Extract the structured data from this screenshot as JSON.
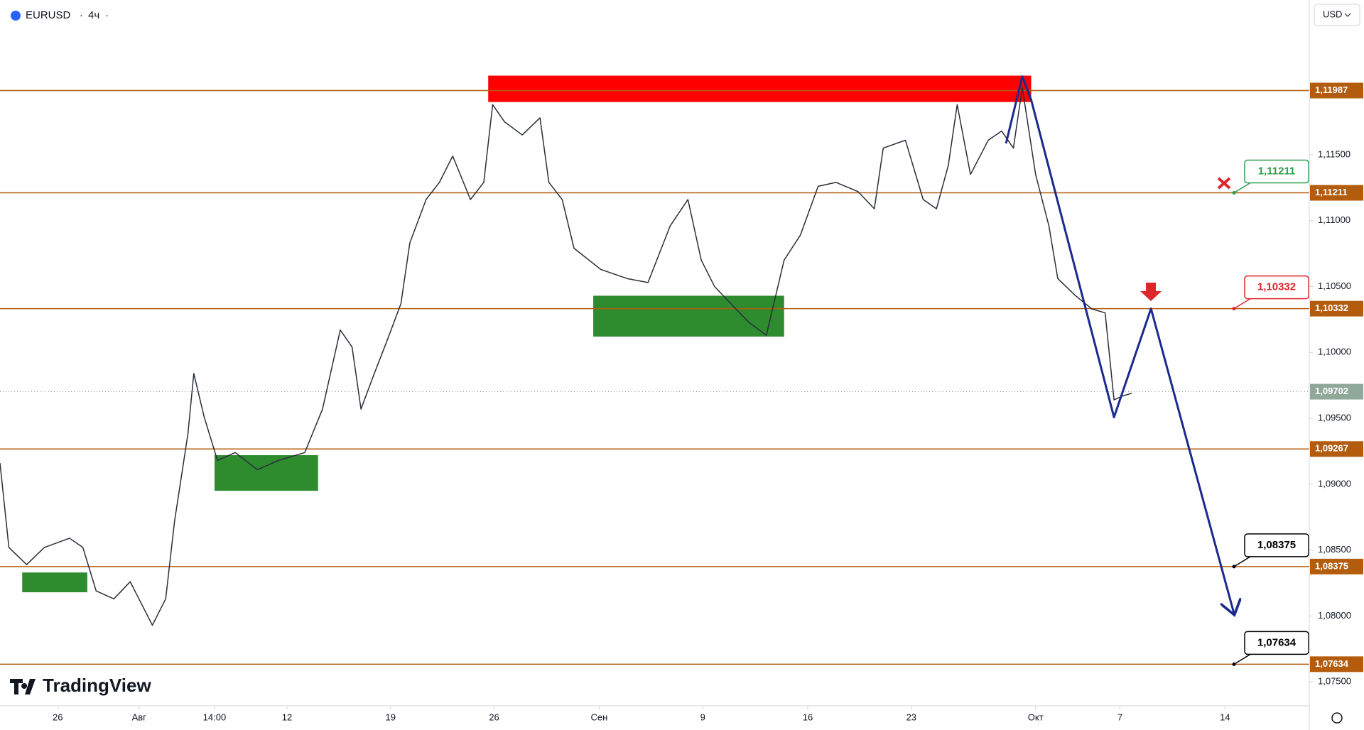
{
  "header": {
    "symbol": "EURUSD",
    "interval": "4ч",
    "currency": "USD",
    "brand": "TradingView"
  },
  "chart_data": {
    "type": "line",
    "xlim": [
      -3.9,
      84.6
    ],
    "ylim": [
      1.07318,
      1.12674
    ],
    "xticks": [
      {
        "value": 0,
        "label": "26"
      },
      {
        "value": 5.5,
        "label": "Авг"
      },
      {
        "value": 10.6,
        "label": "14:00"
      },
      {
        "value": 15.5,
        "label": "12"
      },
      {
        "value": 22.5,
        "label": "19"
      },
      {
        "value": 29.5,
        "label": "26"
      },
      {
        "value": 36.6,
        "label": "Сен"
      },
      {
        "value": 43.6,
        "label": "9"
      },
      {
        "value": 50.7,
        "label": "16"
      },
      {
        "value": 57.7,
        "label": "23"
      },
      {
        "value": 66.1,
        "label": "Окт"
      },
      {
        "value": 71.8,
        "label": "7"
      },
      {
        "value": 78.9,
        "label": "14"
      }
    ],
    "yticks": [
      {
        "value": 1.115,
        "label": "1,11500"
      },
      {
        "value": 1.11,
        "label": "1,11000"
      },
      {
        "value": 1.105,
        "label": "1,10500"
      },
      {
        "value": 1.1,
        "label": "1,10000"
      },
      {
        "value": 1.095,
        "label": "1,09500"
      },
      {
        "value": 1.09,
        "label": "1,09000"
      },
      {
        "value": 1.085,
        "label": "1,08500"
      },
      {
        "value": 1.08,
        "label": "1,08000"
      },
      {
        "value": 1.075,
        "label": "1,07500"
      }
    ],
    "series": [
      {
        "name": "EURUSD",
        "color": "#2a2e39",
        "x": [
          -3.9,
          -3.3,
          -2.1,
          -0.9,
          0.8,
          1.7,
          2.6,
          3.8,
          4.9,
          6.4,
          7.3,
          7.9,
          8.8,
          9.2,
          9.9,
          10.8,
          12.0,
          13.5,
          14.9,
          16.7,
          17.9,
          19.1,
          19.9,
          20.5,
          21.4,
          22.3,
          23.2,
          23.8,
          24.9,
          25.8,
          26.7,
          27.9,
          28.8,
          29.4,
          30.2,
          31.4,
          32.6,
          33.2,
          34.1,
          34.9,
          36.7,
          38.5,
          39.9,
          41.4,
          42.6,
          43.5,
          44.4,
          45.5,
          46.7,
          47.9,
          49.1,
          50.2,
          51.4,
          52.6,
          54.1,
          55.2,
          55.8,
          57.3,
          58.5,
          59.4,
          60.2,
          60.8,
          61.7,
          62.9,
          63.8,
          64.6,
          65.2,
          66.1,
          67.0,
          67.6,
          68.8,
          69.9,
          70.8,
          71.4,
          72.0,
          72.6
        ],
        "values": [
          1.0916,
          1.0852,
          1.0839,
          1.0852,
          1.0859,
          1.0852,
          1.0819,
          1.0813,
          1.0826,
          1.0793,
          1.0813,
          1.0872,
          1.0938,
          1.0984,
          1.0951,
          1.0918,
          1.0924,
          1.0911,
          1.0918,
          1.0924,
          1.0957,
          1.1017,
          1.1004,
          1.0957,
          1.0984,
          1.101,
          1.1037,
          1.1083,
          1.1116,
          1.1129,
          1.1149,
          1.1116,
          1.1129,
          1.1188,
          1.1175,
          1.1165,
          1.1178,
          1.1129,
          1.1116,
          1.1079,
          1.1063,
          1.1056,
          1.1053,
          1.1096,
          1.1116,
          1.107,
          1.105,
          1.1037,
          1.1023,
          1.1013,
          1.107,
          1.1089,
          1.1126,
          1.1129,
          1.1122,
          1.1109,
          1.1155,
          1.1161,
          1.1116,
          1.1109,
          1.1142,
          1.1188,
          1.1135,
          1.1161,
          1.1168,
          1.1155,
          1.1201,
          1.1135,
          1.1096,
          1.1056,
          1.1043,
          1.1033,
          1.103,
          1.0964,
          1.0967,
          1.0969
        ]
      },
      {
        "color": "#1b2a8c",
        "x": [
          64.1,
          65.2,
          65.8,
          71.4,
          73.9,
          79.5
        ],
        "values": [
          1.11586,
          1.12094,
          1.11916,
          1.09508,
          1.10332,
          1.08023
        ]
      }
    ],
    "zones": [
      {
        "x": [
          29.1,
          65.8
        ],
        "y": [
          1.119,
          1.121
        ],
        "color": "#ff0000"
      },
      {
        "x": [
          36.2,
          49.1
        ],
        "y": [
          1.1012,
          1.1043
        ],
        "color": "#2e8b2e"
      },
      {
        "x": [
          10.6,
          17.6
        ],
        "y": [
          1.0895,
          1.0922
        ],
        "color": "#2e8b2e"
      },
      {
        "x": [
          -2.4,
          2.0
        ],
        "y": [
          1.0818,
          1.0833
        ],
        "color": "#2e8b2e"
      }
    ],
    "levels": [
      {
        "value": 1.11987,
        "label": "1,11987"
      },
      {
        "value": 1.11211,
        "label": "1,11211"
      },
      {
        "value": 1.10332,
        "label": "1,10332"
      },
      {
        "value": 1.09267,
        "label": "1,09267"
      },
      {
        "value": 1.08375,
        "label": "1,08375"
      },
      {
        "value": 1.07634,
        "label": "1,07634"
      }
    ],
    "level_color": "#b35c0e",
    "last_price": {
      "value": 1.09702,
      "label": "1,09702"
    },
    "callouts": [
      {
        "value": 1.11211,
        "label": "1,11211",
        "color": "#2e9e4a"
      },
      {
        "value": 1.10332,
        "label": "1,10332",
        "color": "#e0262b"
      },
      {
        "value": 1.08375,
        "label": "1,08375",
        "color": "#000000"
      },
      {
        "value": 1.07634,
        "label": "1,07634",
        "color": "#000000"
      }
    ]
  }
}
